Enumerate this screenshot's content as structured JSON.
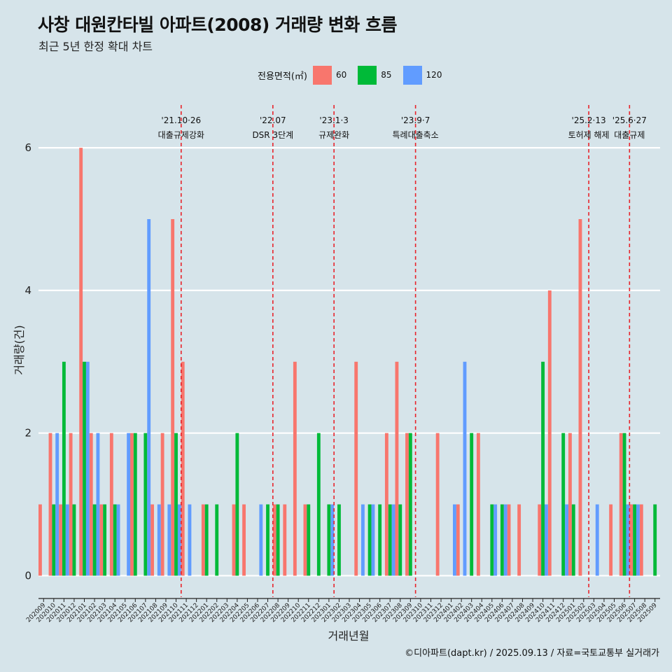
{
  "title": "사창 대원칸타빌 아파트(2008) 거래량 변화 흐름",
  "subtitle": "최근 5년 한정 확대 차트",
  "caption": "©디아파트(dapt.kr) / 2025.09.13 / 자료=국토교통부 실거래가",
  "colors": {
    "s60": "#F8766D",
    "s85": "#00BA38",
    "s120": "#619CFF",
    "background": "#d6e4ea",
    "grid": "#ffffff",
    "event_line": "#e8232a"
  },
  "chart_data": {
    "type": "bar",
    "xlabel": "거래년월",
    "ylabel": "거래량(건)",
    "ylim": [
      -0.3,
      6.6
    ],
    "yticks": [
      0,
      2,
      4,
      6
    ],
    "legend": {
      "title": "전용면적(㎡)",
      "position": "top"
    },
    "categories": [
      "202009",
      "202010",
      "202011",
      "202012",
      "202101",
      "202102",
      "202103",
      "202104",
      "202105",
      "202106",
      "202107",
      "202108",
      "202109",
      "202110",
      "202111",
      "202112",
      "202201",
      "202202",
      "202203",
      "202204",
      "202205",
      "202206",
      "202207",
      "202208",
      "202209",
      "202210",
      "202211",
      "202212",
      "202301",
      "202302",
      "202303",
      "202304",
      "202305",
      "202306",
      "202307",
      "202308",
      "202309",
      "202310",
      "202311",
      "202312",
      "202401",
      "202402",
      "202403",
      "202404",
      "202405",
      "202406",
      "202407",
      "202408",
      "202409",
      "202410",
      "202411",
      "202412",
      "202501",
      "202502",
      "202503",
      "202504",
      "202505",
      "202506",
      "202507",
      "202508",
      "202509"
    ],
    "series": [
      {
        "name": "60",
        "values": [
          1,
          2,
          1,
          2,
          6,
          2,
          1,
          2,
          0,
          2,
          0,
          1,
          2,
          5,
          3,
          0,
          1,
          0,
          0,
          1,
          1,
          0,
          0,
          1,
          1,
          3,
          1,
          0,
          0,
          0,
          0,
          3,
          0,
          0,
          2,
          3,
          2,
          0,
          0,
          2,
          0,
          1,
          0,
          2,
          0,
          0,
          1,
          1,
          0,
          1,
          4,
          0,
          2,
          5,
          0,
          0,
          1,
          2,
          1,
          1,
          0
        ]
      },
      {
        "name": "85",
        "values": [
          0,
          1,
          3,
          1,
          3,
          1,
          1,
          1,
          0,
          2,
          2,
          0,
          0,
          2,
          0,
          0,
          1,
          1,
          0,
          2,
          0,
          0,
          1,
          1,
          0,
          0,
          1,
          2,
          1,
          1,
          0,
          0,
          1,
          1,
          1,
          1,
          2,
          0,
          0,
          0,
          0,
          0,
          2,
          0,
          1,
          1,
          0,
          0,
          0,
          3,
          0,
          2,
          1,
          0,
          0,
          0,
          0,
          2,
          1,
          0,
          1
        ]
      },
      {
        "name": "120",
        "values": [
          0,
          2,
          1,
          0,
          3,
          2,
          0,
          1,
          2,
          0,
          5,
          1,
          1,
          1,
          1,
          0,
          0,
          0,
          0,
          0,
          0,
          1,
          0,
          0,
          0,
          0,
          0,
          0,
          1,
          0,
          0,
          1,
          1,
          0,
          1,
          0,
          0,
          0,
          0,
          0,
          1,
          3,
          0,
          0,
          1,
          1,
          0,
          0,
          0,
          1,
          0,
          1,
          0,
          0,
          1,
          0,
          0,
          1,
          1,
          0,
          0
        ]
      }
    ],
    "events": [
      {
        "after": "202110",
        "date": "'21.10·26",
        "label": "대출규제강화"
      },
      {
        "after": "202207",
        "date": "'22.07",
        "label": "DSR 3단계"
      },
      {
        "after": "202301",
        "date": "'23.1·3",
        "label": "규제완화"
      },
      {
        "after": "202309",
        "date": "'23.9·7",
        "label": "특례대출축소"
      },
      {
        "after": "202502",
        "date": "'25.2·13",
        "label": "토허제 해제"
      },
      {
        "after": "202506",
        "date": "'25.6·27",
        "label": "대출규제"
      }
    ]
  }
}
